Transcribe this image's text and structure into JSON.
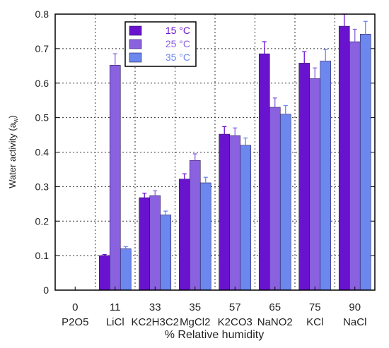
{
  "chart_data": {
    "type": "bar",
    "title": "",
    "xlabel": "% Relative humidity",
    "ylabel": "Water activity (a",
    "ylabel_subscript": "w",
    "ylabel_suffix": ")",
    "ylim": [
      0,
      0.8
    ],
    "yticks": [
      "0",
      "0.1",
      "0.2",
      "0.3",
      "0.4",
      "0.5",
      "0.6",
      "0.7",
      "0.8"
    ],
    "grid": true,
    "legend_position": "top-left",
    "categories": [
      {
        "rh": "0",
        "salt": "P2O5"
      },
      {
        "rh": "11",
        "salt": "LiCl"
      },
      {
        "rh": "33",
        "salt": "KC2H3C2"
      },
      {
        "rh": "35",
        "salt": "MgCl2"
      },
      {
        "rh": "57",
        "salt": "K2CO3"
      },
      {
        "rh": "65",
        "salt": "NaNO2"
      },
      {
        "rh": "75",
        "salt": "KCl"
      },
      {
        "rh": "90",
        "salt": "NaCl"
      }
    ],
    "series": [
      {
        "name": "15 °C",
        "color": "#6a13cf",
        "values": [
          null,
          0.1,
          0.268,
          0.322,
          0.452,
          0.685,
          0.658,
          0.765
        ],
        "errors": [
          null,
          0.003,
          0.013,
          0.015,
          0.022,
          0.035,
          0.033,
          0.038
        ]
      },
      {
        "name": "25 °C",
        "color": "#8a61df",
        "values": [
          null,
          0.652,
          0.274,
          0.376,
          0.448,
          0.53,
          0.613,
          0.72
        ],
        "errors": [
          null,
          0.033,
          0.014,
          0.019,
          0.022,
          0.027,
          0.031,
          0.036
        ]
      },
      {
        "name": "35 °C",
        "color": "#6c87ee",
        "values": [
          null,
          0.12,
          0.218,
          0.311,
          0.42,
          0.51,
          0.664,
          0.742
        ],
        "errors": [
          null,
          0.006,
          0.011,
          0.016,
          0.021,
          0.025,
          0.033,
          0.037
        ]
      }
    ]
  }
}
